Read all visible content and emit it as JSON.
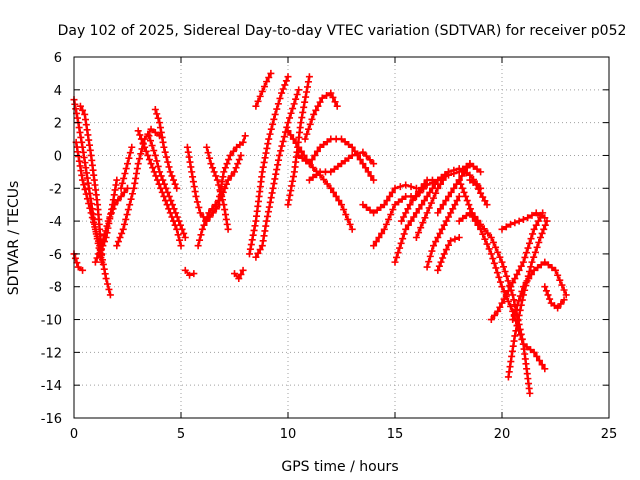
{
  "chart_data": {
    "type": "scatter",
    "title": "Day 102 of 2025, Sidereal Day-to-day VTEC variation (SDTVAR) for receiver p052",
    "xlabel": "GPS time / hours",
    "ylabel": "SDTVAR / TECUs",
    "xlim": [
      0,
      25
    ],
    "ylim": [
      -16,
      6
    ],
    "xticks": [
      0,
      5,
      10,
      15,
      20,
      25
    ],
    "yticks": [
      -16,
      -14,
      -12,
      -10,
      -8,
      -6,
      -4,
      -2,
      0,
      2,
      4,
      6
    ],
    "grid": true,
    "marker": "plus",
    "color": "#ff0000",
    "series": [
      {
        "x": [
          0.0,
          0.2,
          0.4,
          0.7,
          1.0,
          1.3
        ],
        "y": [
          3.4,
          2.0,
          0.5,
          -2.0,
          -4.5,
          -6.5
        ]
      },
      {
        "x": [
          0.1,
          0.4,
          0.8,
          1.2,
          1.5,
          1.7
        ],
        "y": [
          0.8,
          -1.5,
          -3.5,
          -5.5,
          -7.5,
          -8.5
        ]
      },
      {
        "x": [
          0.0,
          0.2,
          0.4
        ],
        "y": [
          -6.0,
          -6.8,
          -7.0
        ]
      },
      {
        "x": [
          0.3,
          0.5,
          0.8,
          1.1,
          1.3
        ],
        "y": [
          3.0,
          2.5,
          0.0,
          -3.0,
          -6.0
        ]
      },
      {
        "x": [
          1.0,
          1.3,
          1.6,
          1.9,
          2.2,
          2.5
        ],
        "y": [
          -6.5,
          -5.5,
          -4.0,
          -3.0,
          -2.5,
          -2.0
        ]
      },
      {
        "x": [
          1.2,
          1.5,
          1.8,
          2.0
        ],
        "y": [
          -6.0,
          -5.0,
          -3.0,
          -1.5
        ]
      },
      {
        "x": [
          2.0,
          2.3,
          2.6,
          2.8,
          3.0,
          3.3,
          3.6,
          4.0
        ],
        "y": [
          -5.5,
          -4.5,
          -3.0,
          -2.0,
          -0.5,
          1.0,
          1.6,
          1.2
        ]
      },
      {
        "x": [
          2.2,
          2.5,
          2.7
        ],
        "y": [
          -2.0,
          -0.5,
          0.5
        ]
      },
      {
        "x": [
          3.0,
          3.3,
          3.6,
          3.9,
          4.2,
          4.5,
          4.8,
          5.0
        ],
        "y": [
          1.5,
          0.5,
          -0.5,
          -1.5,
          -2.5,
          -3.5,
          -4.5,
          -5.5
        ]
      },
      {
        "x": [
          3.5,
          3.8,
          4.0,
          4.3,
          4.6,
          4.9,
          5.2
        ],
        "y": [
          1.2,
          0.0,
          -1.0,
          -2.0,
          -3.0,
          -4.0,
          -5.0
        ]
      },
      {
        "x": [
          3.8,
          4.0,
          4.2,
          4.5,
          4.8
        ],
        "y": [
          2.8,
          2.0,
          0.5,
          -1.0,
          -2.0
        ]
      },
      {
        "x": [
          5.3,
          5.5,
          5.7,
          5.9,
          6.2,
          6.5,
          6.8
        ],
        "y": [
          0.5,
          -1.0,
          -2.5,
          -3.5,
          -4.0,
          -3.5,
          -3.0
        ]
      },
      {
        "x": [
          5.8,
          6.0,
          6.3,
          6.6,
          6.9,
          7.2,
          7.5,
          7.8
        ],
        "y": [
          -5.5,
          -4.5,
          -3.5,
          -3.0,
          -2.5,
          -1.5,
          -1.0,
          0.0
        ]
      },
      {
        "x": [
          6.2,
          6.4,
          6.7,
          7.0,
          7.2
        ],
        "y": [
          0.5,
          -0.5,
          -1.5,
          -3.0,
          -4.5
        ]
      },
      {
        "x": [
          6.8,
          7.0,
          7.3,
          7.6,
          7.9,
          8.0
        ],
        "y": [
          -2.5,
          -1.0,
          0.0,
          0.5,
          0.8,
          1.2
        ]
      },
      {
        "x": [
          5.2,
          5.4,
          5.6
        ],
        "y": [
          -7.0,
          -7.3,
          -7.2
        ]
      },
      {
        "x": [
          7.5,
          7.7,
          7.9
        ],
        "y": [
          -7.2,
          -7.5,
          -7.0
        ]
      },
      {
        "x": [
          8.2,
          8.5,
          8.8,
          9.1,
          9.4,
          9.7,
          10.0
        ],
        "y": [
          -6.0,
          -4.0,
          -1.0,
          1.0,
          2.5,
          3.8,
          4.8
        ]
      },
      {
        "x": [
          8.5,
          8.8,
          9.0,
          9.3,
          9.6,
          10.0,
          10.5
        ],
        "y": [
          -6.2,
          -5.5,
          -4.0,
          -2.0,
          0.0,
          2.0,
          4.0
        ]
      },
      {
        "x": [
          8.5,
          8.7,
          9.0,
          9.2
        ],
        "y": [
          3.0,
          3.6,
          4.5,
          5.0
        ]
      },
      {
        "x": [
          10.0,
          10.3,
          10.6,
          11.0
        ],
        "y": [
          -3.0,
          -1.0,
          2.0,
          4.8
        ]
      },
      {
        "x": [
          10.8,
          11.2,
          11.6,
          12.0,
          12.3
        ],
        "y": [
          1.0,
          2.5,
          3.5,
          3.8,
          3.0
        ]
      },
      {
        "x": [
          10.0,
          10.5,
          11.0,
          11.5,
          12.0,
          12.5,
          13.0
        ],
        "y": [
          1.5,
          0.5,
          -0.5,
          -1.2,
          -2.0,
          -3.0,
          -4.5
        ]
      },
      {
        "x": [
          10.5,
          11.0,
          11.5,
          12.0,
          12.5,
          13.0,
          13.5,
          14.0
        ],
        "y": [
          0.0,
          -0.5,
          0.5,
          1.0,
          1.0,
          0.5,
          -0.5,
          -1.5
        ]
      },
      {
        "x": [
          11.0,
          11.5,
          12.0,
          12.5,
          13.0,
          13.5,
          14.0
        ],
        "y": [
          -1.5,
          -1.0,
          -1.0,
          -0.5,
          0.0,
          0.2,
          -0.5
        ]
      },
      {
        "x": [
          13.5,
          14.0,
          14.5,
          15.0,
          15.5,
          16.0
        ],
        "y": [
          -3.0,
          -3.5,
          -3.0,
          -2.0,
          -1.8,
          -2.0
        ]
      },
      {
        "x": [
          14.0,
          14.5,
          15.0,
          15.5,
          16.0,
          16.5,
          17.0,
          17.5,
          18.0,
          18.5
        ],
        "y": [
          -5.5,
          -4.5,
          -3.0,
          -2.5,
          -2.5,
          -1.8,
          -1.5,
          -1.2,
          -1.0,
          -0.5
        ]
      },
      {
        "x": [
          15.0,
          15.5,
          16.0,
          16.5,
          17.0,
          17.5,
          18.0,
          18.5,
          19.0
        ],
        "y": [
          -6.5,
          -4.5,
          -3.5,
          -2.5,
          -1.5,
          -1.0,
          -0.8,
          -1.2,
          -2.0
        ]
      },
      {
        "x": [
          15.3,
          15.7,
          16.1,
          16.5,
          17.0
        ],
        "y": [
          -4.0,
          -3.0,
          -2.2,
          -1.5,
          -1.5
        ]
      },
      {
        "x": [
          16.0,
          16.5,
          17.0,
          17.5
        ],
        "y": [
          -5.0,
          -3.5,
          -2.0,
          -1.0
        ]
      },
      {
        "x": [
          16.5,
          16.8,
          17.2,
          17.6,
          18.0
        ],
        "y": [
          -6.8,
          -5.5,
          -4.5,
          -3.5,
          -2.5
        ]
      },
      {
        "x": [
          17.0,
          17.5,
          18.0,
          18.5,
          19.0
        ],
        "y": [
          -3.5,
          -2.5,
          -1.5,
          -0.5,
          -1.0
        ]
      },
      {
        "x": [
          17.0,
          17.3,
          17.6,
          18.0
        ],
        "y": [
          -7.0,
          -6.0,
          -5.2,
          -5.0
        ]
      },
      {
        "x": [
          18.0,
          18.3,
          18.6,
          19.0,
          19.5,
          20.0,
          20.5,
          21.0,
          21.3
        ],
        "y": [
          -1.5,
          -2.5,
          -3.5,
          -4.2,
          -5.0,
          -6.5,
          -8.5,
          -11.5,
          -14.5
        ]
      },
      {
        "x": [
          18.5,
          18.8,
          19.0,
          19.3
        ],
        "y": [
          -1.5,
          -1.8,
          -2.3,
          -3.0
        ]
      },
      {
        "x": [
          18.0,
          18.5,
          19.0,
          19.5,
          20.0,
          20.5,
          21.0,
          21.5,
          22.0
        ],
        "y": [
          -4.0,
          -3.5,
          -4.5,
          -6.0,
          -8.0,
          -9.5,
          -11.5,
          -12.0,
          -13.0
        ]
      },
      {
        "x": [
          19.5,
          19.8,
          20.2,
          20.6,
          21.0,
          21.5,
          21.9
        ],
        "y": [
          -10.0,
          -9.5,
          -8.5,
          -7.5,
          -6.5,
          -4.5,
          -3.5
        ]
      },
      {
        "x": [
          20.0,
          20.4,
          20.8,
          21.2,
          21.6,
          22.0
        ],
        "y": [
          -4.5,
          -4.2,
          -4.0,
          -3.8,
          -3.5,
          -3.8
        ]
      },
      {
        "x": [
          20.3,
          20.6,
          21.0,
          21.4,
          21.8,
          22.1
        ],
        "y": [
          -13.5,
          -11.0,
          -8.5,
          -6.5,
          -5.0,
          -4.0
        ]
      },
      {
        "x": [
          20.5,
          21.0,
          21.5,
          22.0,
          22.5,
          23.0
        ],
        "y": [
          -10.0,
          -8.0,
          -7.0,
          -6.5,
          -7.0,
          -8.5
        ]
      },
      {
        "x": [
          22.0,
          22.3,
          22.6,
          22.9
        ],
        "y": [
          -8.0,
          -9.0,
          -9.3,
          -8.8
        ]
      }
    ]
  }
}
